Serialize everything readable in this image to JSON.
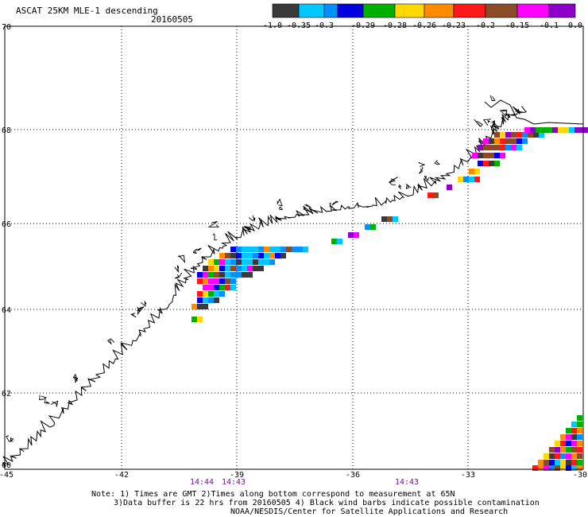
{
  "header": {
    "title": "ASCAT 25KM MLE-1 descending",
    "date": "20160505"
  },
  "colorbar": {
    "colors": [
      "#3a3a3a",
      "#00c8ff",
      "#0090ff",
      "#0000e0",
      "#00b000",
      "#ffd800",
      "#ff8c00",
      "#ff1818",
      "#8b4a28",
      "#ff00ff",
      "#8c00c8"
    ],
    "tick_labels": [
      "-1.0",
      "-0.35",
      "-0.3",
      "-0.29",
      "-0.28",
      "-0.26",
      "-0.23",
      "-0.2",
      "-0.15",
      "-0.1",
      "0.0"
    ]
  },
  "map": {
    "lat_labels": [
      "70",
      "68",
      "66",
      "64",
      "62",
      "60"
    ],
    "lon_labels": [
      "-45",
      "-42",
      "-39",
      "-36",
      "-33",
      "-30"
    ],
    "time_labels": [
      "14:44",
      "14:43",
      "14:43"
    ],
    "time_color": "#6a1a8a",
    "grid": "dotted"
  },
  "notes": {
    "line1": "Note: 1) Times are GMT 2)Times along bottom correspond to measurement at 65N",
    "line2": "3)Data buffer is 22 hrs from 20160505 4) Black wind barbs indicate possible contamination",
    "line3": "NOAA/NESDIS/Center for Satellite Applications and Research"
  }
}
